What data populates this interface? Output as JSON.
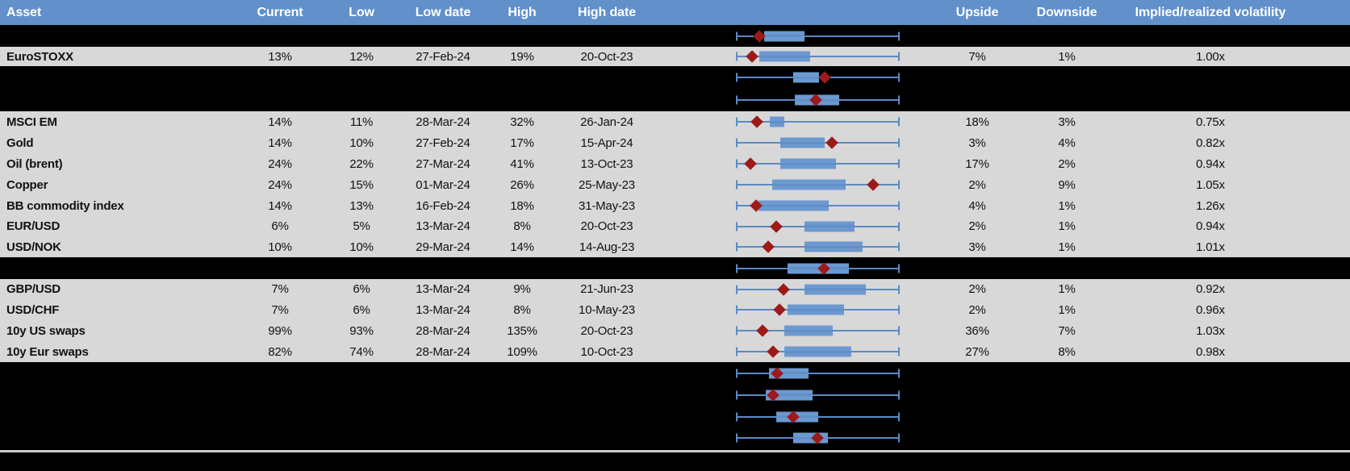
{
  "colors": {
    "header_bg": "#6190ca",
    "header_text": "#ffffff",
    "row_bg": "#d8d8d8",
    "hidden_row_bg": "#000000",
    "box_fill": "#6d99d1",
    "whisker": "#5b8ac4",
    "marker": "#9c1a1a",
    "text": "#111111",
    "separator_line": "#cbcbcb"
  },
  "header": {
    "columns": [
      "Asset",
      "Current",
      "Low",
      "Low date",
      "High",
      "High date",
      "Upside",
      "Downside",
      "Implied/realized volatility"
    ]
  },
  "rows": [
    {
      "kind": "hidden",
      "plot": {
        "box_low_pct": 17.2,
        "box_high_pct": 41.9,
        "marker_pct": 14.3
      }
    },
    {
      "kind": "data",
      "asset": "EuroSTOXX",
      "current": "13%",
      "low": "12%",
      "low_date": "27-Feb-24",
      "high": "19%",
      "high_date": "20-Oct-23",
      "upside": "7%",
      "downside": "1%",
      "implied_realized": "1.00x",
      "plot": {
        "box_low_pct": 14.3,
        "box_high_pct": 45.3,
        "marker_pct": 9.9
      }
    },
    {
      "kind": "hidden",
      "plot": {
        "box_low_pct": 35.0,
        "box_high_pct": 50.7,
        "marker_pct": 54.2
      }
    },
    {
      "kind": "hidden",
      "plot": {
        "box_low_pct": 36.0,
        "box_high_pct": 63.1,
        "marker_pct": 48.8
      }
    },
    {
      "kind": "data",
      "asset": "MSCI EM",
      "current": "14%",
      "low": "11%",
      "low_date": "28-Mar-24",
      "high": "32%",
      "high_date": "26-Jan-24",
      "upside": "18%",
      "downside": "3%",
      "implied_realized": "0.75x",
      "plot": {
        "box_low_pct": 20.7,
        "box_high_pct": 29.6,
        "marker_pct": 12.8
      }
    },
    {
      "kind": "data",
      "asset": "Gold",
      "current": "14%",
      "low": "10%",
      "low_date": "27-Feb-24",
      "high": "17%",
      "high_date": "15-Apr-24",
      "upside": "3%",
      "downside": "4%",
      "implied_realized": "0.82x",
      "plot": {
        "box_low_pct": 27.1,
        "box_high_pct": 54.2,
        "marker_pct": 58.6
      }
    },
    {
      "kind": "data",
      "asset": "Oil (brent)",
      "current": "24%",
      "low": "22%",
      "low_date": "27-Mar-24",
      "high": "41%",
      "high_date": "13-Oct-23",
      "upside": "17%",
      "downside": "2%",
      "implied_realized": "0.94x",
      "plot": {
        "box_low_pct": 27.1,
        "box_high_pct": 61.1,
        "marker_pct": 8.9
      }
    },
    {
      "kind": "data",
      "asset": "Copper",
      "current": "24%",
      "low": "15%",
      "low_date": "01-Mar-24",
      "high": "26%",
      "high_date": "25-May-23",
      "upside": "2%",
      "downside": "9%",
      "implied_realized": "1.05x",
      "plot": {
        "box_low_pct": 22.2,
        "box_high_pct": 67.0,
        "marker_pct": 83.7
      }
    },
    {
      "kind": "data",
      "asset": "BB commodity index",
      "current": "14%",
      "low": "13%",
      "low_date": "16-Feb-24",
      "high": "18%",
      "high_date": "31-May-23",
      "upside": "4%",
      "downside": "1%",
      "implied_realized": "1.26x",
      "plot": {
        "box_low_pct": 13.8,
        "box_high_pct": 56.7,
        "marker_pct": 12.3
      }
    },
    {
      "kind": "data",
      "asset": "EUR/USD",
      "current": "6%",
      "low": "5%",
      "low_date": "13-Mar-24",
      "high": "8%",
      "high_date": "20-Oct-23",
      "upside": "2%",
      "downside": "1%",
      "implied_realized": "0.94x",
      "plot": {
        "box_low_pct": 41.9,
        "box_high_pct": 72.4,
        "marker_pct": 24.6
      }
    },
    {
      "kind": "data",
      "asset": "USD/NOK",
      "current": "10%",
      "low": "10%",
      "low_date": "29-Mar-24",
      "high": "14%",
      "high_date": "14-Aug-23",
      "upside": "3%",
      "downside": "1%",
      "implied_realized": "1.01x",
      "plot": {
        "box_low_pct": 41.9,
        "box_high_pct": 77.3,
        "marker_pct": 19.7
      }
    },
    {
      "kind": "hidden",
      "plot": {
        "box_low_pct": 31.5,
        "box_high_pct": 69.0,
        "marker_pct": 53.7
      }
    },
    {
      "kind": "data",
      "asset": "GBP/USD",
      "current": "7%",
      "low": "6%",
      "low_date": "13-Mar-24",
      "high": "9%",
      "high_date": "21-Jun-23",
      "upside": "2%",
      "downside": "1%",
      "implied_realized": "0.92x",
      "plot": {
        "box_low_pct": 41.9,
        "box_high_pct": 79.3,
        "marker_pct": 29.1
      }
    },
    {
      "kind": "data",
      "asset": "USD/CHF",
      "current": "7%",
      "low": "6%",
      "low_date": "13-Mar-24",
      "high": "8%",
      "high_date": "10-May-23",
      "upside": "2%",
      "downside": "1%",
      "implied_realized": "0.96x",
      "plot": {
        "box_low_pct": 31.5,
        "box_high_pct": 66.0,
        "marker_pct": 26.6
      }
    },
    {
      "kind": "data",
      "asset": "10y US swaps",
      "current": "99%",
      "low": "93%",
      "low_date": "28-Mar-24",
      "high": "135%",
      "high_date": "20-Oct-23",
      "upside": "36%",
      "downside": "7%",
      "implied_realized": "1.03x",
      "plot": {
        "box_low_pct": 29.6,
        "box_high_pct": 59.1,
        "marker_pct": 16.3
      }
    },
    {
      "kind": "data",
      "asset": "10y Eur swaps",
      "current": "82%",
      "low": "74%",
      "low_date": "28-Mar-24",
      "high": "109%",
      "high_date": "10-Oct-23",
      "upside": "27%",
      "downside": "8%",
      "implied_realized": "0.98x",
      "plot": {
        "box_low_pct": 29.6,
        "box_high_pct": 70.4,
        "marker_pct": 22.7
      }
    },
    {
      "kind": "hidden",
      "plot": {
        "box_low_pct": 20.2,
        "box_high_pct": 44.3,
        "marker_pct": 25.1
      }
    },
    {
      "kind": "hidden",
      "plot": {
        "box_low_pct": 18.2,
        "box_high_pct": 46.8,
        "marker_pct": 22.7
      }
    },
    {
      "kind": "hidden",
      "plot": {
        "box_low_pct": 24.6,
        "box_high_pct": 50.2,
        "marker_pct": 35.0
      }
    },
    {
      "kind": "hidden",
      "plot": {
        "box_low_pct": 35.0,
        "box_high_pct": 56.2,
        "marker_pct": 49.8
      }
    }
  ]
}
